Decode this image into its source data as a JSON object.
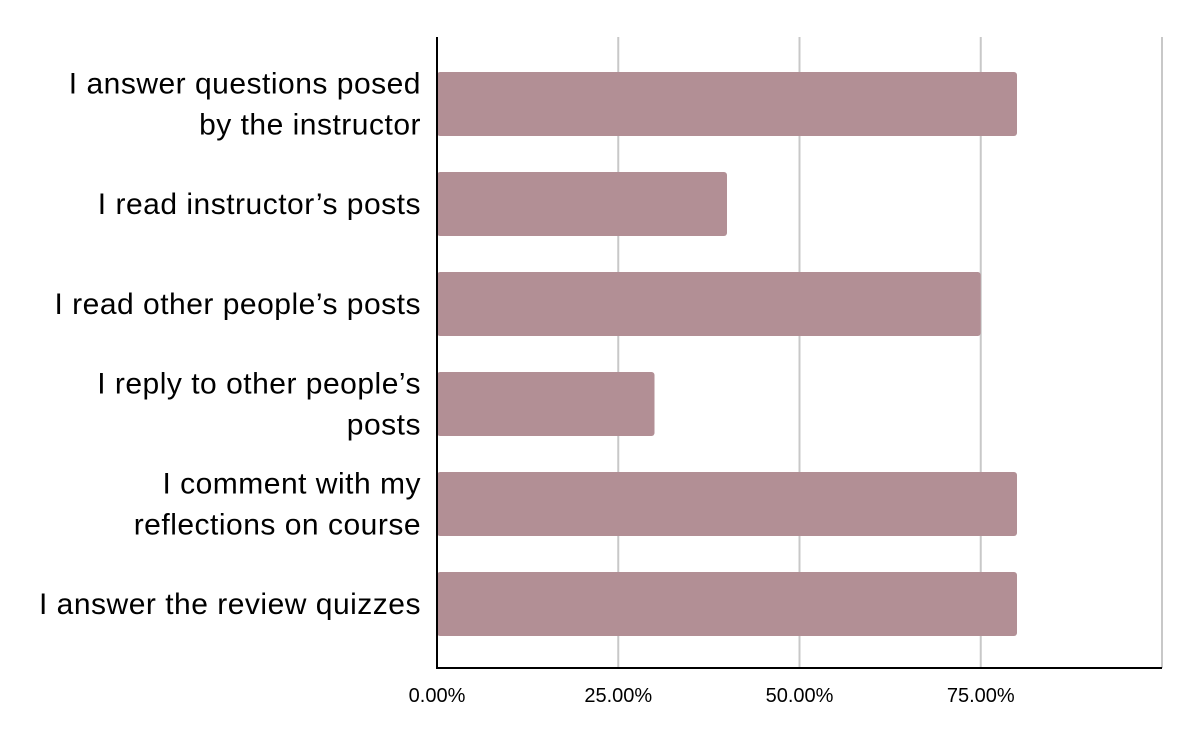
{
  "chart_data": {
    "type": "hbar",
    "categories": [
      "I answer questions posed by the instructor",
      "I read instructor’s posts",
      "I read other people’s posts",
      "I reply to other people’s posts",
      "I comment with my reflections on course",
      "I answer the review quizzes"
    ],
    "values": [
      80,
      40,
      75,
      30,
      80,
      80
    ],
    "color": "#b28f95",
    "xlim": [
      0,
      100
    ],
    "xticks": [
      {
        "value": 0,
        "label": "0.00%"
      },
      {
        "value": 25,
        "label": "25.00%"
      },
      {
        "value": 50,
        "label": "50.00%"
      },
      {
        "value": 75,
        "label": "75.00%"
      }
    ],
    "grid": true
  }
}
